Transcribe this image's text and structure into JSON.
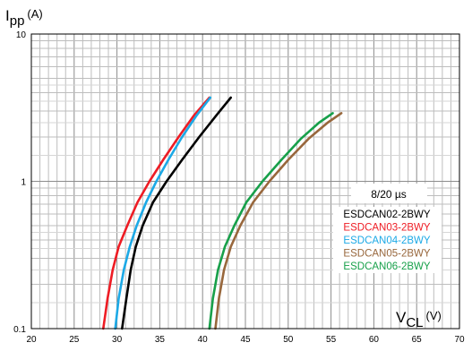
{
  "chart_data": {
    "type": "line",
    "xlabel": {
      "main": "V",
      "sub": "CL",
      "unit": "(V)"
    },
    "ylabel": {
      "main": "I",
      "sub": "pp",
      "unit": "(A)"
    },
    "x_ticks": [
      "20",
      "25",
      "30",
      "35",
      "40",
      "45",
      "50",
      "55",
      "60",
      "65",
      "70"
    ],
    "y_ticks": [
      "10",
      "1",
      "0.1"
    ],
    "xlim": [
      20,
      70
    ],
    "ylim": [
      0.1,
      10
    ],
    "y_scale": "log",
    "grid": true,
    "legend": {
      "title": "8/20 µs",
      "placement": "right",
      "items": [
        {
          "label": "ESDCAN02-2BWY",
          "color": "#000000"
        },
        {
          "label": "ESDCAN03-2BWY",
          "color": "#ee1c24"
        },
        {
          "label": "ESDCAN04-2BWY",
          "color": "#1ca9e6"
        },
        {
          "label": "ESDCAN05-2BWY",
          "color": "#98673c"
        },
        {
          "label": "ESDCAN06-2BWY",
          "color": "#17a04a"
        }
      ]
    },
    "series": [
      {
        "name": "ESDCAN02-2BWY",
        "color": "#000000",
        "x": [
          30.6,
          31.1,
          31.6,
          32.2,
          33.0,
          34.2,
          35.8,
          37.6,
          39.6,
          41.6,
          43.3
        ],
        "y": [
          0.1,
          0.16,
          0.25,
          0.36,
          0.5,
          0.72,
          1.0,
          1.4,
          2.0,
          2.8,
          3.7
        ]
      },
      {
        "name": "ESDCAN03-2BWY",
        "color": "#ee1c24",
        "x": [
          28.4,
          28.9,
          29.5,
          30.2,
          31.2,
          32.4,
          33.8,
          35.4,
          37.2,
          39.0,
          40.8
        ],
        "y": [
          0.1,
          0.16,
          0.25,
          0.36,
          0.5,
          0.72,
          1.0,
          1.4,
          2.0,
          2.8,
          3.7
        ]
      },
      {
        "name": "ESDCAN04-2BWY",
        "color": "#1ca9e6",
        "x": [
          29.8,
          30.2,
          30.8,
          31.5,
          32.3,
          33.4,
          34.6,
          36.0,
          37.6,
          39.3,
          40.9
        ],
        "y": [
          0.1,
          0.16,
          0.25,
          0.36,
          0.5,
          0.72,
          1.0,
          1.4,
          2.0,
          2.8,
          3.7
        ]
      },
      {
        "name": "ESDCAN05-2BWY",
        "color": "#98673c",
        "x": [
          41.5,
          41.9,
          42.5,
          43.3,
          44.4,
          45.9,
          47.8,
          50.0,
          52.4,
          54.6,
          56.2
        ],
        "y": [
          0.1,
          0.16,
          0.25,
          0.36,
          0.5,
          0.72,
          1.0,
          1.4,
          1.95,
          2.5,
          2.9
        ]
      },
      {
        "name": "ESDCAN06-2BWY",
        "color": "#17a04a",
        "x": [
          40.8,
          41.2,
          41.8,
          42.6,
          43.7,
          45.1,
          47.0,
          49.2,
          51.5,
          53.6,
          55.2
        ],
        "y": [
          0.1,
          0.16,
          0.25,
          0.36,
          0.5,
          0.72,
          1.0,
          1.4,
          1.95,
          2.5,
          2.9
        ]
      }
    ]
  }
}
